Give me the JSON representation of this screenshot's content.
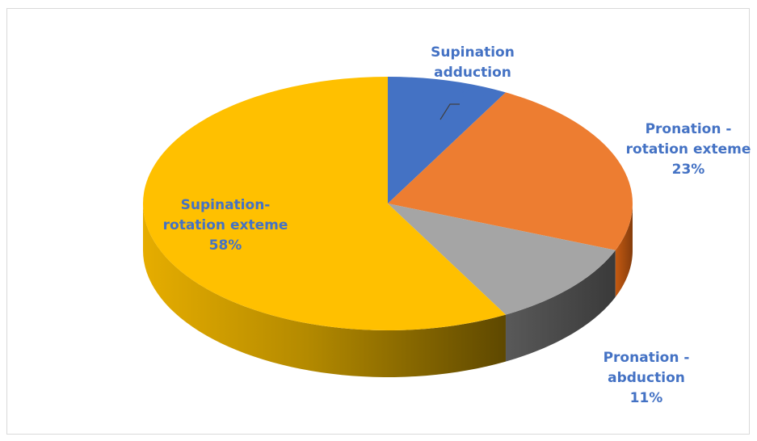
{
  "chart_data": {
    "type": "pie",
    "title": "",
    "style": "3d",
    "legend": "none",
    "slices": [
      {
        "name_lines": [
          "Supination",
          "adduction"
        ],
        "value": 8,
        "label": "8%",
        "color": "#4472c4"
      },
      {
        "name_lines": [
          "Pronation -",
          "rotation exteme"
        ],
        "value": 23,
        "label": "23%",
        "color": "#ed7d31"
      },
      {
        "name_lines": [
          "Pronation -",
          "abduction"
        ],
        "value": 11,
        "label": "11%",
        "color": "#a5a5a5"
      },
      {
        "name_lines": [
          "Supination-",
          "rotation exteme"
        ],
        "value": 58,
        "label": "58%",
        "color": "#ffc000"
      }
    ],
    "label_color": "#4472c4"
  }
}
